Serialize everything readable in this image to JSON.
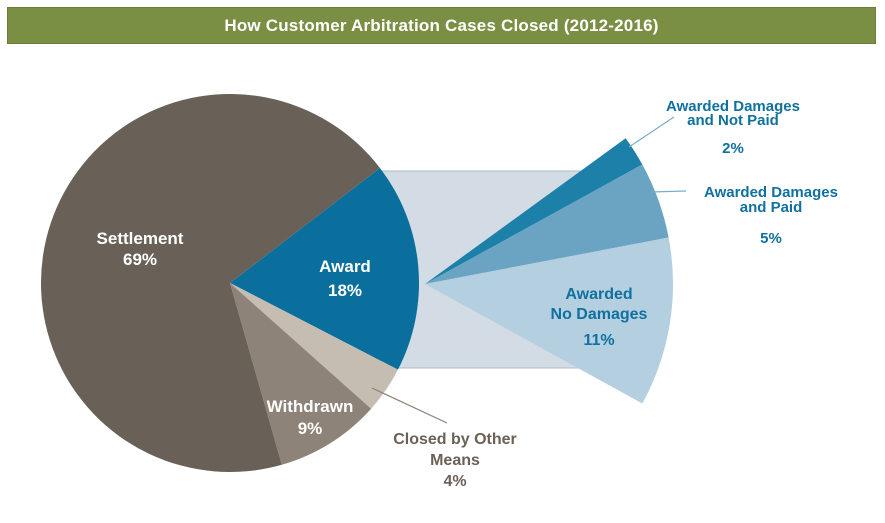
{
  "header": {
    "title": "How Customer Arbitration Cases Closed (2012-2016)",
    "bg_color": "#7a8f43",
    "text_color": "#ffffff"
  },
  "chart_data": {
    "type": "pie",
    "subtype": "pie-of-pie",
    "title": "How Customer Arbitration Cases Closed (2012-2016)",
    "legend_position": "none",
    "main_pie": {
      "slices": [
        {
          "label": "Settlement",
          "value": 69,
          "pct_label": "69%",
          "color": "#696158",
          "label_color": "#ffffff"
        },
        {
          "label": "Award",
          "value": 18,
          "pct_label": "18%",
          "color": "#0a6f9d",
          "label_color": "#ffffff"
        },
        {
          "label": "Withdrawn",
          "value": 9,
          "pct_label": "9%",
          "color": "#8e8378",
          "label_color": "#ffffff"
        },
        {
          "label": "Closed by Other Means",
          "value": 4,
          "pct_label": "4%",
          "color": "#c5bdb2",
          "label_color": "#6b6156"
        }
      ]
    },
    "breakout_pie": {
      "of": "Award",
      "slices": [
        {
          "label": "Awarded Damages and Not Paid",
          "value": 2,
          "pct_label": "2%",
          "color": "#1c80a9",
          "label_color": "#10719f"
        },
        {
          "label": "Awarded Damages and Paid",
          "value": 5,
          "pct_label": "5%",
          "color": "#6ba4c3",
          "label_color": "#10719f"
        },
        {
          "label": "Awarded No Damages",
          "value": 11,
          "pct_label": "11%",
          "color": "#b4cfdf",
          "label_color": "#10719f"
        }
      ],
      "connector_band_color": "#d3dce4"
    }
  }
}
